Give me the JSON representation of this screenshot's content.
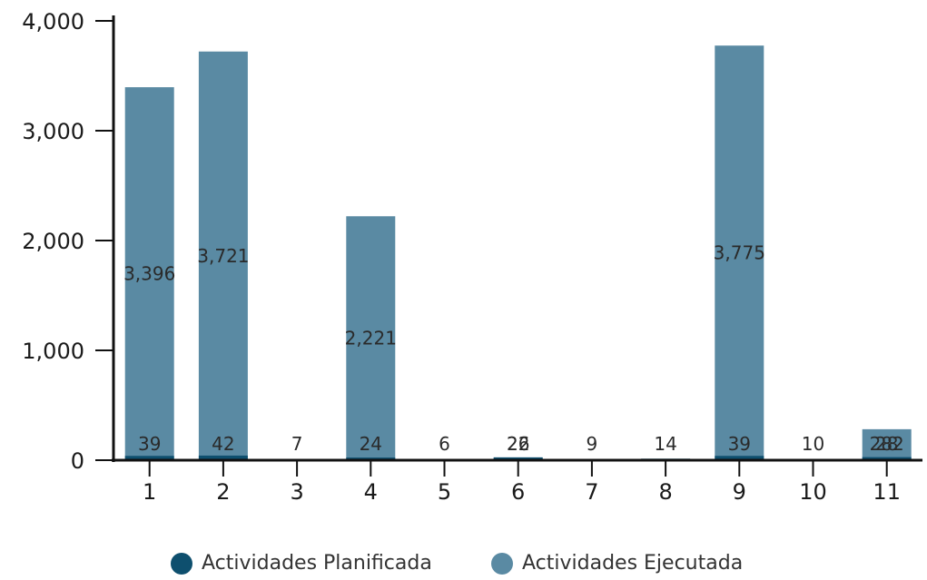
{
  "chart_data": {
    "type": "bar",
    "categories": [
      "1",
      "2",
      "3",
      "4",
      "5",
      "6",
      "7",
      "8",
      "9",
      "10",
      "11"
    ],
    "series": [
      {
        "name": "Actividades Planificada",
        "color": "#0e4f6e",
        "values": [
          39,
          42,
          7,
          24,
          6,
          26,
          9,
          14,
          39,
          10,
          28
        ]
      },
      {
        "name": "Actividades Ejecutada",
        "color": "#5a8aa3",
        "values": [
          3396,
          3721,
          0,
          2221,
          0,
          22,
          0,
          0,
          3775,
          0,
          282
        ]
      }
    ],
    "bar_labels": [
      "3,396",
      "3,721",
      "",
      "2,221",
      "",
      "22",
      "",
      "",
      "3,775",
      "",
      "282"
    ],
    "planned_labels": [
      "39",
      "42",
      "7",
      "24",
      "6",
      "26",
      "9",
      "14",
      "39",
      "10",
      "28"
    ],
    "ylim": [
      0,
      4000
    ],
    "yticks": [
      0,
      1000,
      2000,
      3000,
      4000
    ],
    "ytick_labels": [
      "0",
      "1,000",
      "2,000",
      "3,000",
      "4,000"
    ],
    "xlabel": "",
    "ylabel": "",
    "grid": false,
    "legend_position": "bottom"
  },
  "legend": {
    "items": [
      {
        "label": "Actividades Planificada",
        "color": "#0e4f6e"
      },
      {
        "label": "Actividades Ejecutada",
        "color": "#5a8aa3"
      }
    ]
  }
}
